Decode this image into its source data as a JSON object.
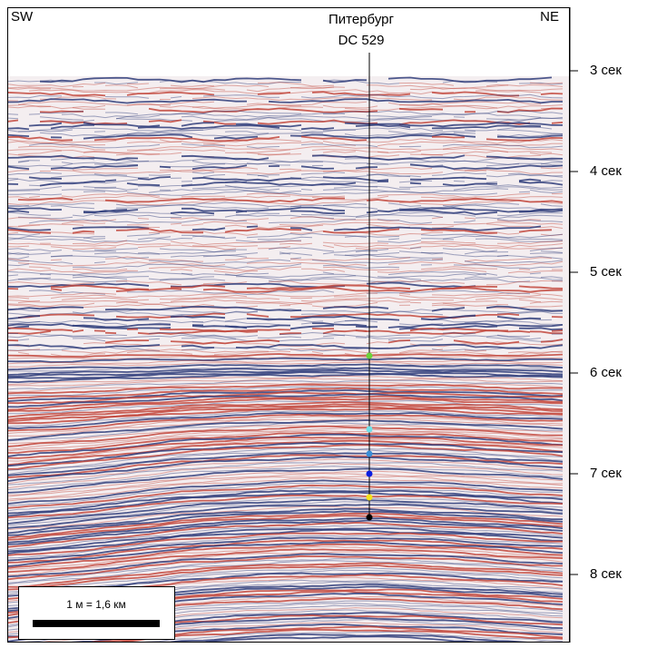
{
  "section": {
    "left_label": "SW",
    "right_label": "NE"
  },
  "well": {
    "name": "Питербург",
    "id": "DC 529"
  },
  "time_axis": {
    "ticks": [
      "3 сек",
      "4 сек",
      "5 сек",
      "6 сек",
      "7 сек",
      "8 сек"
    ]
  },
  "scale_bar": {
    "label": "1 м = 1,6 км"
  }
}
